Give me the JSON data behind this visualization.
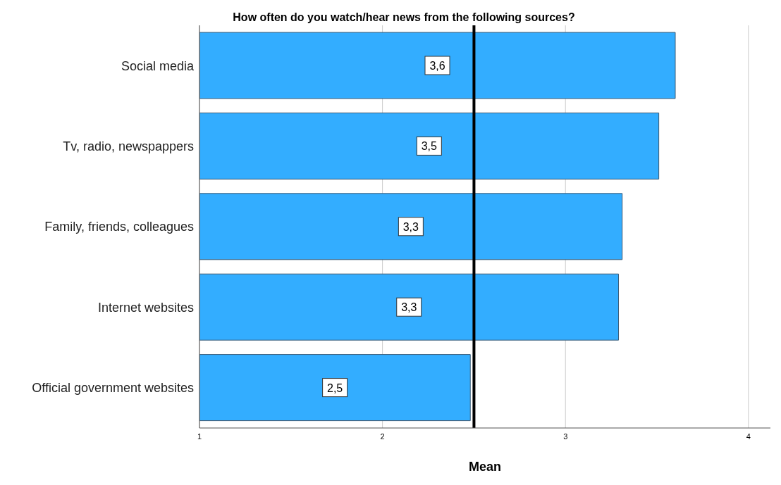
{
  "chart_data": {
    "type": "bar",
    "orientation": "horizontal",
    "title": "How often do you watch/hear news from the following sources?",
    "xlabel": "Mean",
    "categories": [
      "Social media",
      "Tv, radio, newspappers",
      "Family, friends, colleagues",
      "Internet websites",
      "Official government websites"
    ],
    "values": [
      3.6,
      3.51,
      3.31,
      3.29,
      2.48
    ],
    "value_labels": [
      "3,6",
      "3,5",
      "3,3",
      "3,3",
      "2,5"
    ],
    "color": "#33adff",
    "xlim": [
      1,
      4.12
    ],
    "xticks": [
      1,
      2,
      3,
      4
    ],
    "grid": "x",
    "ref_lines": [
      {
        "axis": "x",
        "value": 2.5,
        "color": "#000000"
      }
    ]
  }
}
